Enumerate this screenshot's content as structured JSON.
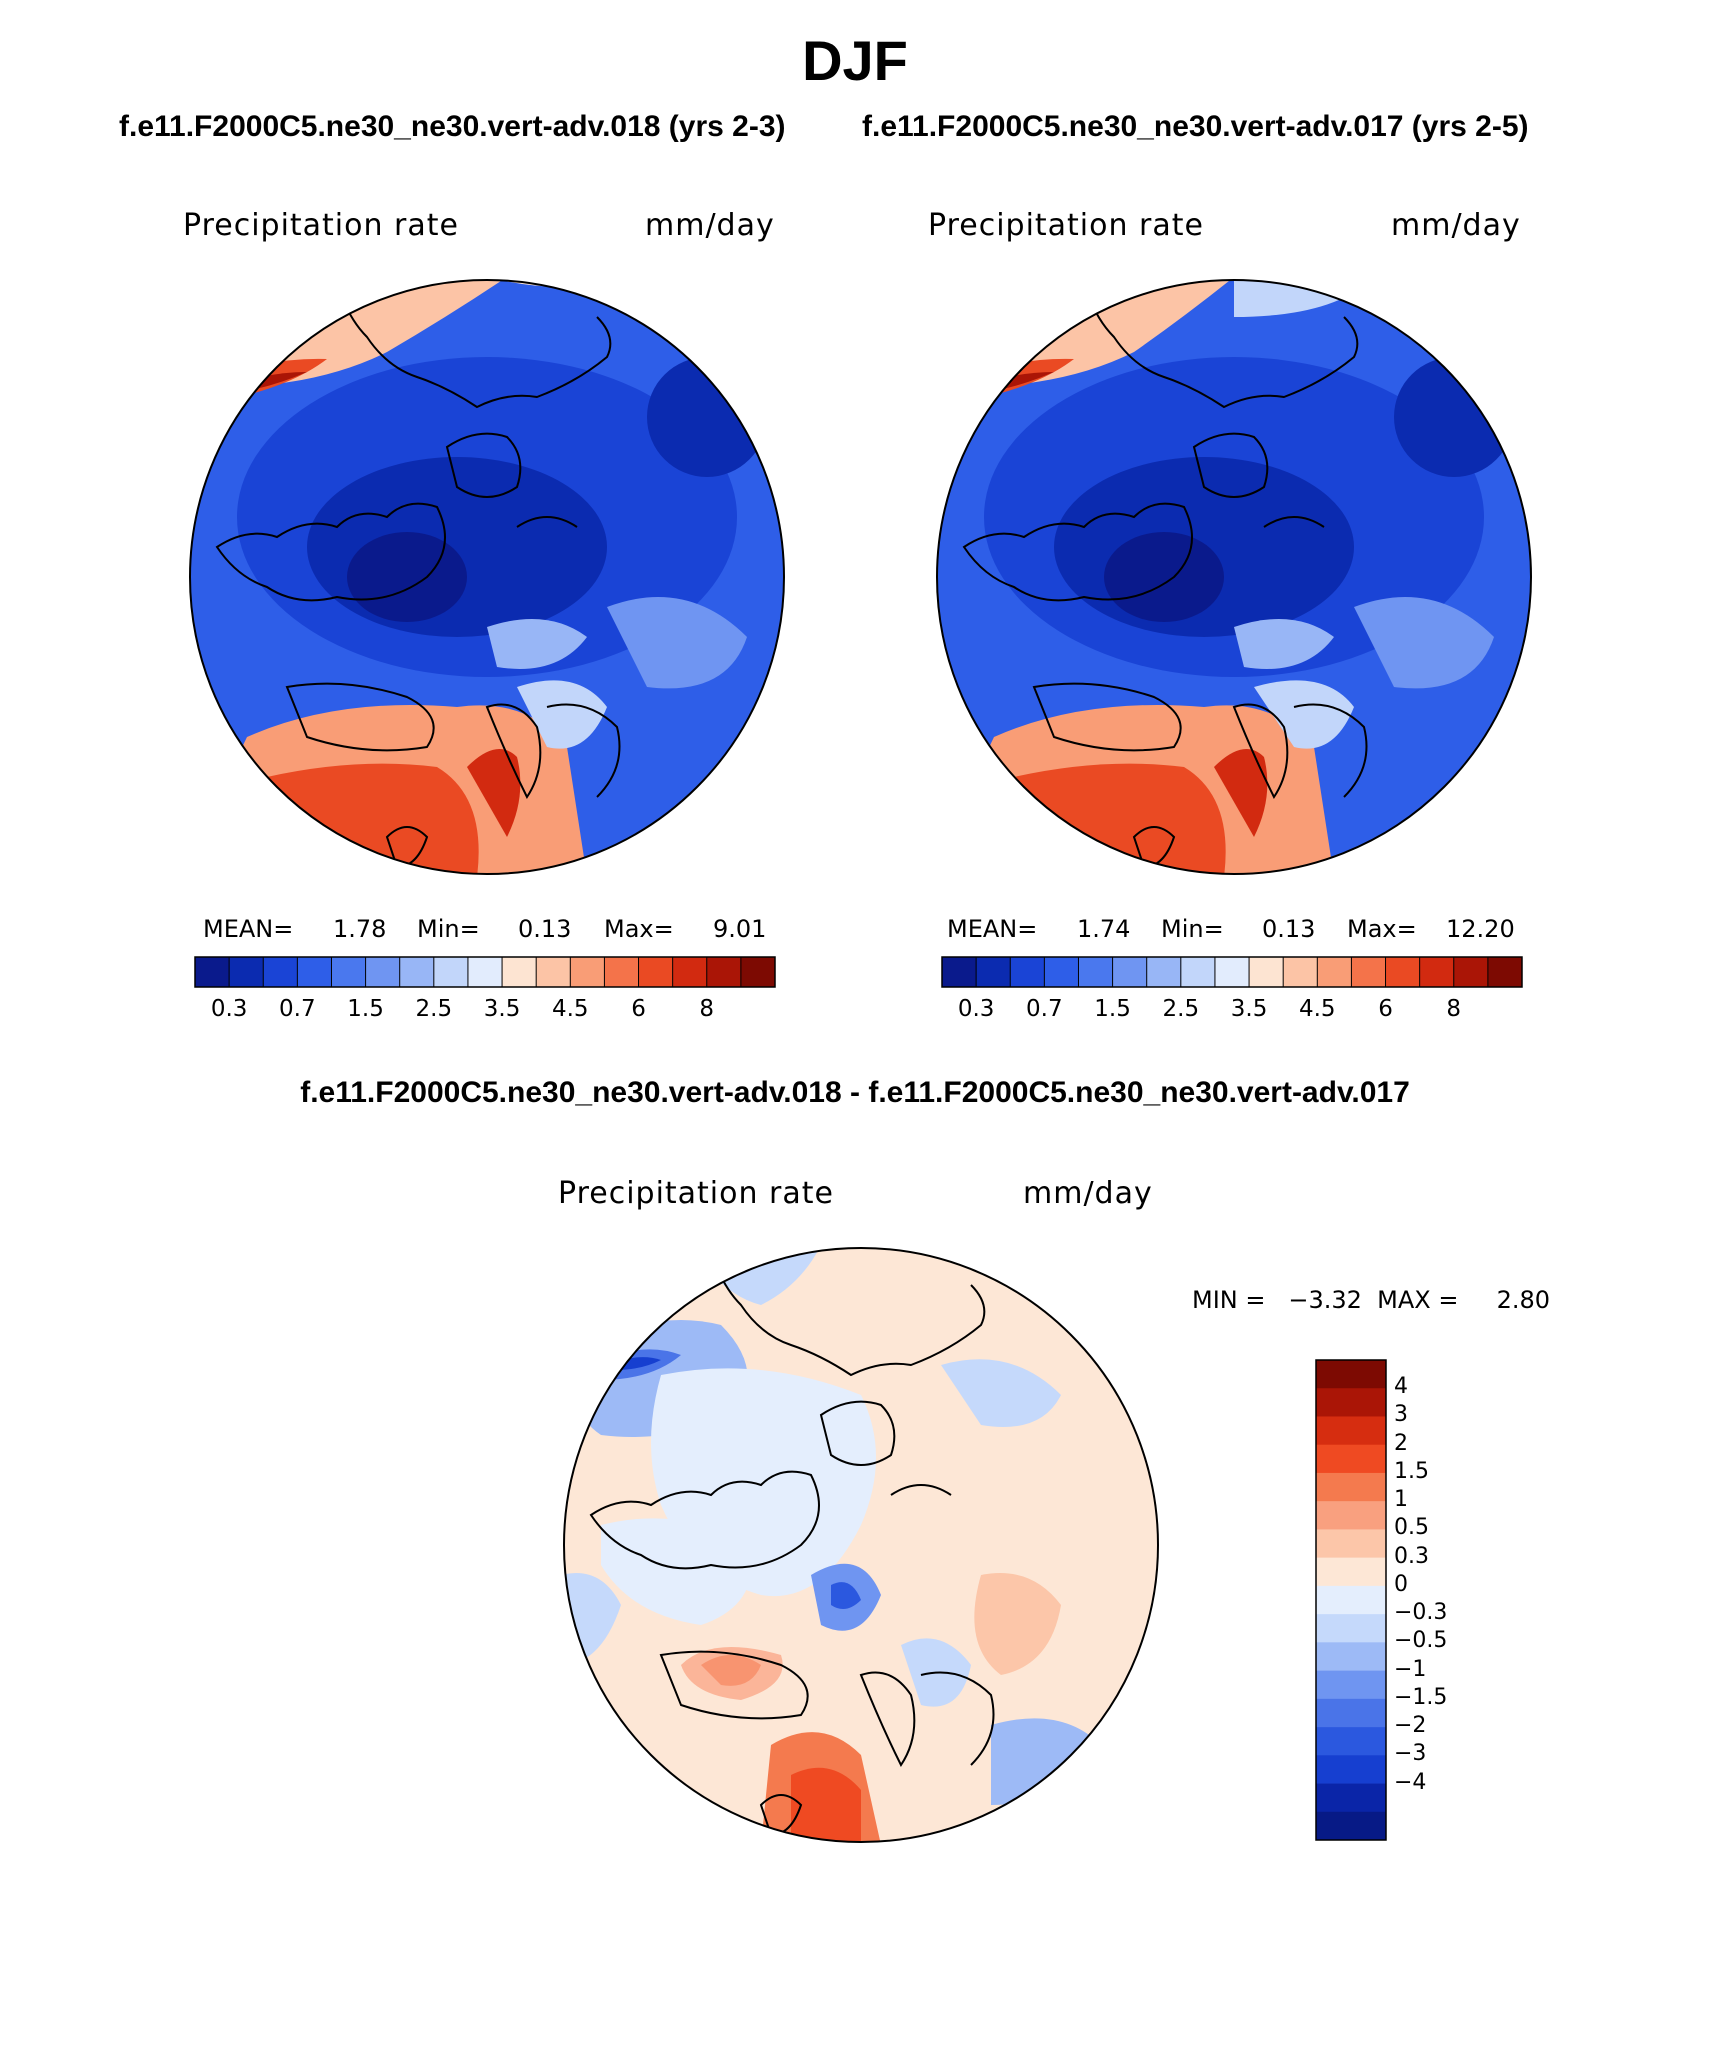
{
  "figure": {
    "title": "DJF",
    "case_label_left": "f.e11.F2000C5.ne30_ne30.vert-adv.018 (yrs 2-3)",
    "case_label_right": "f.e11.F2000C5.ne30_ne30.vert-adv.017 (yrs 2-5)",
    "diff_title": "f.e11.F2000C5.ne30_ne30.vert-adv.018 - f.e11.F2000C5.ne30_ne30.vert-adv.017"
  },
  "panels": [
    {
      "variable": "Precipitation rate",
      "units": "mm/day",
      "stats": {
        "mean_label": "MEAN=",
        "mean": "1.78",
        "min_label": "Min=",
        "min": "0.13",
        "max_label": "Max=",
        "max": "9.01"
      }
    },
    {
      "variable": "Precipitation rate",
      "units": "mm/day",
      "stats": {
        "mean_label": "MEAN=",
        "mean": "1.74",
        "min_label": "Min=",
        "min": "0.13",
        "max_label": "Max=",
        "max": "12.20"
      }
    }
  ],
  "diff_panel": {
    "variable": "Precipitation rate",
    "units": "mm/day",
    "minmax": "MIN =   −3.32  MAX =     2.80"
  },
  "colorbar_abs": {
    "colors": [
      "#0a1a8c",
      "#0b2bb0",
      "#1a44d6",
      "#2e5ee8",
      "#4a78ee",
      "#6f95f2",
      "#98b6f6",
      "#c2d6fa",
      "#e2ecfd",
      "#fde4d2",
      "#fcc4a6",
      "#f99d76",
      "#f4734a",
      "#ea4a23",
      "#d22a10",
      "#aa1506",
      "#7d0a02"
    ],
    "tick_labels": [
      "0.3",
      "0.7",
      "1.5",
      "2.5",
      "3.5",
      "4.5",
      "6",
      "8"
    ]
  },
  "colorbar_diff": {
    "colors": [
      "#7d0a02",
      "#aa1506",
      "#d62d10",
      "#ef4a22",
      "#f47a4e",
      "#f9a07f",
      "#fcc6a9",
      "#fde7d6",
      "#e4eefd",
      "#c5d9fb",
      "#9dbaf6",
      "#6f95f1",
      "#4a74e8",
      "#2b58df",
      "#163fd0",
      "#0a25a8",
      "#071a86"
    ],
    "tick_labels": [
      "4",
      "3",
      "2",
      "1.5",
      "1",
      "0.5",
      "0.3",
      "0",
      "−0.3",
      "−0.5",
      "−1",
      "−1.5",
      "−2",
      "−3",
      "−4"
    ]
  }
}
